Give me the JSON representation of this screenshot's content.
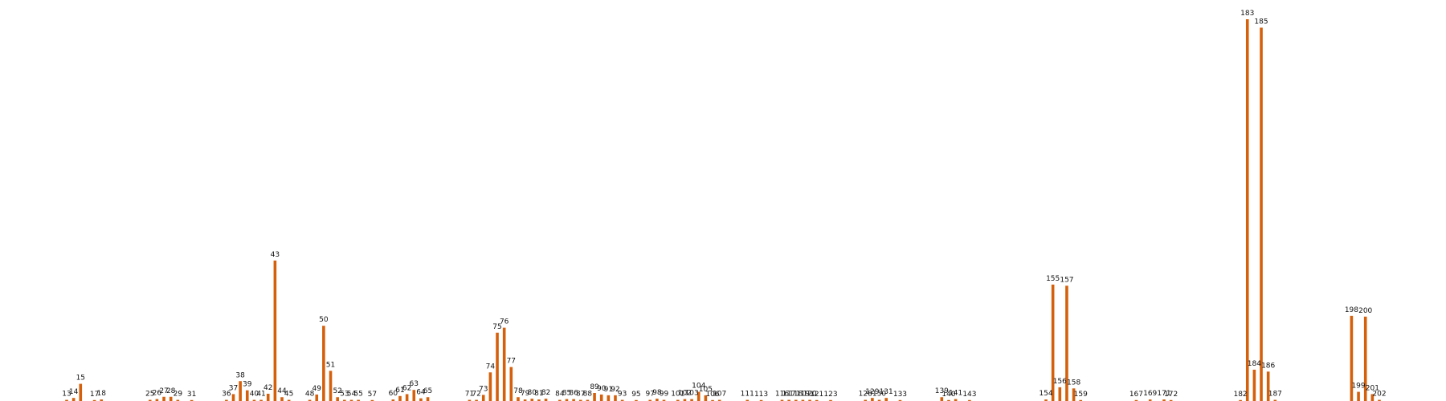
{
  "chart_data": {
    "type": "bar",
    "title": "",
    "xlabel": "",
    "ylabel": "",
    "ylim": [
      0,
      100
    ],
    "bar_color": "#d4600c",
    "bars": [
      {
        "x": 13,
        "label": "13",
        "value": 0.3
      },
      {
        "x": 14,
        "label": "14",
        "value": 0.8
      },
      {
        "x": 15,
        "label": "15",
        "value": 4.5
      },
      {
        "x": 17,
        "label": "17",
        "value": 0.1
      },
      {
        "x": 18,
        "label": "18",
        "value": 0.4
      },
      {
        "x": 25,
        "label": "25",
        "value": 0.3
      },
      {
        "x": 26,
        "label": "26",
        "value": 0.5
      },
      {
        "x": 27,
        "label": "27",
        "value": 1.1
      },
      {
        "x": 28,
        "label": "28",
        "value": 1.1
      },
      {
        "x": 29,
        "label": "29",
        "value": 0.3
      },
      {
        "x": 31,
        "label": "31",
        "value": 0.1
      },
      {
        "x": 36,
        "label": "36",
        "value": 0.3
      },
      {
        "x": 37,
        "label": "37",
        "value": 1.8
      },
      {
        "x": 38,
        "label": "38",
        "value": 5.2
      },
      {
        "x": 39,
        "label": "39",
        "value": 2.8
      },
      {
        "x": 40,
        "label": "40",
        "value": 0.3
      },
      {
        "x": 41,
        "label": "41",
        "value": 0.3
      },
      {
        "x": 42,
        "label": "42",
        "value": 1.9
      },
      {
        "x": 43,
        "label": "43",
        "value": 36.8
      },
      {
        "x": 44,
        "label": "44",
        "value": 1.0
      },
      {
        "x": 45,
        "label": "45",
        "value": 0.3
      },
      {
        "x": 48,
        "label": "48",
        "value": 0.3
      },
      {
        "x": 49,
        "label": "49",
        "value": 1.7
      },
      {
        "x": 50,
        "label": "50",
        "value": 19.7
      },
      {
        "x": 51,
        "label": "51",
        "value": 7.9
      },
      {
        "x": 52,
        "label": "52",
        "value": 1.0
      },
      {
        "x": 53,
        "label": "53",
        "value": 0.3
      },
      {
        "x": 54,
        "label": "54",
        "value": 0.3
      },
      {
        "x": 55,
        "label": "55",
        "value": 0.3
      },
      {
        "x": 57,
        "label": "57",
        "value": 0.1
      },
      {
        "x": 60,
        "label": "60",
        "value": 0.4
      },
      {
        "x": 61,
        "label": "61",
        "value": 1.3
      },
      {
        "x": 62,
        "label": "62",
        "value": 1.8
      },
      {
        "x": 63,
        "label": "63",
        "value": 2.9
      },
      {
        "x": 64,
        "label": "64",
        "value": 0.7
      },
      {
        "x": 65,
        "label": "65",
        "value": 1.0
      },
      {
        "x": 71,
        "label": "71",
        "value": 0.3
      },
      {
        "x": 72,
        "label": "72",
        "value": 0.3
      },
      {
        "x": 73,
        "label": "73",
        "value": 1.6
      },
      {
        "x": 74,
        "label": "74",
        "value": 7.5
      },
      {
        "x": 75,
        "label": "75",
        "value": 17.9
      },
      {
        "x": 76,
        "label": "76",
        "value": 19.2
      },
      {
        "x": 77,
        "label": "77",
        "value": 8.9
      },
      {
        "x": 78,
        "label": "78",
        "value": 1.0
      },
      {
        "x": 79,
        "label": "79",
        "value": 0.4
      },
      {
        "x": 80,
        "label": "80",
        "value": 0.6
      },
      {
        "x": 81,
        "label": "81",
        "value": 0.4
      },
      {
        "x": 82,
        "label": "82",
        "value": 0.6
      },
      {
        "x": 84,
        "label": "84",
        "value": 0.3
      },
      {
        "x": 85,
        "label": "85",
        "value": 0.5
      },
      {
        "x": 86,
        "label": "86",
        "value": 0.5
      },
      {
        "x": 87,
        "label": "87",
        "value": 0.3
      },
      {
        "x": 88,
        "label": "88",
        "value": 0.3
      },
      {
        "x": 89,
        "label": "89",
        "value": 2.1
      },
      {
        "x": 90,
        "label": "90",
        "value": 1.7
      },
      {
        "x": 91,
        "label": "91",
        "value": 1.5
      },
      {
        "x": 92,
        "label": "92",
        "value": 1.5
      },
      {
        "x": 93,
        "label": "93",
        "value": 0.3
      },
      {
        "x": 95,
        "label": "95",
        "value": 0.1
      },
      {
        "x": 97,
        "label": "97",
        "value": 0.3
      },
      {
        "x": 98,
        "label": "98",
        "value": 0.6
      },
      {
        "x": 99,
        "label": "99",
        "value": 0.3
      },
      {
        "x": 101,
        "label": "101",
        "value": 0.3
      },
      {
        "x": 102,
        "label": "102",
        "value": 0.5
      },
      {
        "x": 103,
        "label": "103",
        "value": 0.5
      },
      {
        "x": 104,
        "label": "104",
        "value": 2.4
      },
      {
        "x": 105,
        "label": "105",
        "value": 1.5
      },
      {
        "x": 106,
        "label": "106",
        "value": 0.1
      },
      {
        "x": 107,
        "label": "107",
        "value": 0.3
      },
      {
        "x": 111,
        "label": "111",
        "value": 0.3
      },
      {
        "x": 113,
        "label": "113",
        "value": 0.1
      },
      {
        "x": 116,
        "label": "116",
        "value": 0.3
      },
      {
        "x": 117,
        "label": "117",
        "value": 0.3
      },
      {
        "x": 118,
        "label": "118",
        "value": 0.3
      },
      {
        "x": 119,
        "label": "119",
        "value": 0.3
      },
      {
        "x": 120,
        "label": "120",
        "value": 0.3
      },
      {
        "x": 121,
        "label": "121",
        "value": 0.1
      },
      {
        "x": 123,
        "label": "123",
        "value": 0.1
      },
      {
        "x": 128,
        "label": "128",
        "value": 0.3
      },
      {
        "x": 129,
        "label": "129",
        "value": 0.8
      },
      {
        "x": 130,
        "label": "130",
        "value": 0.3
      },
      {
        "x": 131,
        "label": "131",
        "value": 0.8
      },
      {
        "x": 133,
        "label": "133",
        "value": 0.1
      },
      {
        "x": 139,
        "label": "139",
        "value": 1.0
      },
      {
        "x": 140,
        "label": "140",
        "value": 0.1
      },
      {
        "x": 141,
        "label": "141",
        "value": 0.5
      },
      {
        "x": 143,
        "label": "143",
        "value": 0.1
      },
      {
        "x": 154,
        "label": "154",
        "value": 0.4
      },
      {
        "x": 155,
        "label": "155",
        "value": 30.5
      },
      {
        "x": 156,
        "label": "156",
        "value": 3.6
      },
      {
        "x": 157,
        "label": "157",
        "value": 30.2
      },
      {
        "x": 158,
        "label": "158",
        "value": 3.3
      },
      {
        "x": 159,
        "label": "159",
        "value": 0.1
      },
      {
        "x": 167,
        "label": "167",
        "value": 0.1
      },
      {
        "x": 169,
        "label": "169",
        "value": 0.4
      },
      {
        "x": 171,
        "label": "171",
        "value": 0.4
      },
      {
        "x": 172,
        "label": "172",
        "value": 0.1
      },
      {
        "x": 182,
        "label": "182",
        "value": 0.1
      },
      {
        "x": 183,
        "label": "183",
        "value": 100.0
      },
      {
        "x": 184,
        "label": "184",
        "value": 8.2
      },
      {
        "x": 185,
        "label": "185",
        "value": 97.8
      },
      {
        "x": 186,
        "label": "186",
        "value": 7.7
      },
      {
        "x": 187,
        "label": "187",
        "value": 0.3
      },
      {
        "x": 198,
        "label": "198",
        "value": 22.3
      },
      {
        "x": 199,
        "label": "199",
        "value": 2.4
      },
      {
        "x": 200,
        "label": "200",
        "value": 22.1
      },
      {
        "x": 201,
        "label": "201",
        "value": 1.8
      },
      {
        "x": 202,
        "label": "202",
        "value": 0.3
      }
    ]
  }
}
